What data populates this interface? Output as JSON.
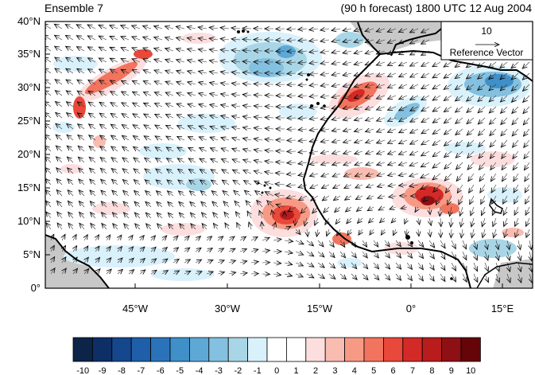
{
  "header": {
    "left": "Ensemble 7",
    "right": "(90 h forecast) 1800 UTC 12 Aug 2004"
  },
  "map": {
    "lon_range": [
      -56,
      20
    ],
    "lat_range": [
      0,
      40
    ],
    "lat_ticks": [
      "0°",
      "5°N",
      "10°N",
      "15°N",
      "20°N",
      "25°N",
      "30°N",
      "35°N",
      "40°N"
    ],
    "lon_ticks": [
      "45°W",
      "30°W",
      "15°W",
      "0°",
      "15°E"
    ],
    "ocean_color": "#ffffff",
    "land_gray_color": "#c8c8c8"
  },
  "reference_vector": {
    "value": "10",
    "label": "Reference Vector"
  },
  "colorbar": {
    "labels": [
      "-10",
      "-9",
      "-8",
      "-7",
      "-6",
      "-5",
      "-4",
      "-3",
      "-2",
      "-1",
      "0",
      "1",
      "2",
      "3",
      "4",
      "5",
      "6",
      "7",
      "8",
      "9",
      "10"
    ],
    "colors": [
      "#0b2448",
      "#0d2f66",
      "#15478c",
      "#1f5ea8",
      "#2a73b8",
      "#3f8fc9",
      "#5ea8d6",
      "#84c0df",
      "#a9d6e6",
      "#d9f1fb",
      "#ffffff",
      "#ffffff",
      "#fcdede",
      "#f9bcb1",
      "#f69a85",
      "#f2745e",
      "#e9483a",
      "#d32a27",
      "#b81c1d",
      "#8e1014",
      "#650507"
    ]
  }
}
